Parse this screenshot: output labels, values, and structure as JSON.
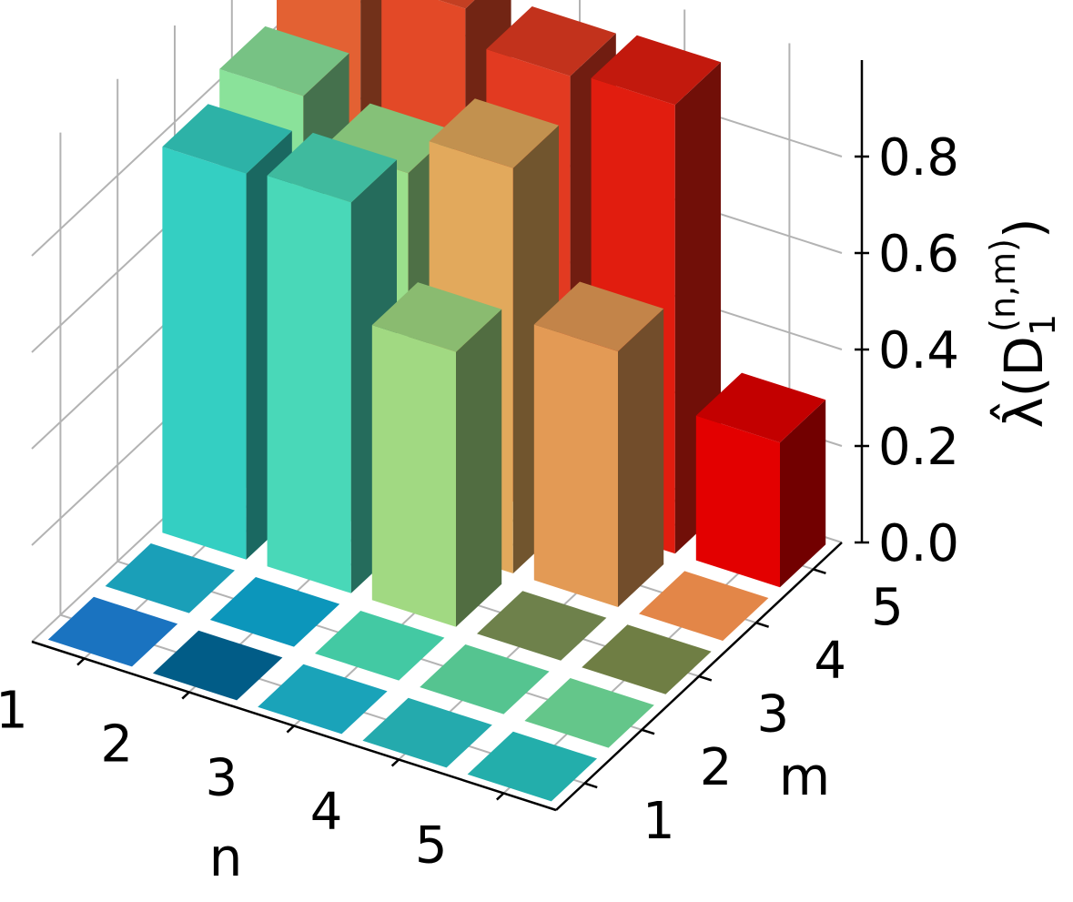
{
  "chart_data": {
    "type": "bar3d",
    "title": "",
    "xlabel": "n",
    "ylabel": "m",
    "zlabel": "λ̂(D₁⁽ⁿ,ᵐ⁾)",
    "zlabel_parts": {
      "base": "λ̂(D",
      "sub": "1",
      "sup": "(n,m)",
      "close": ")"
    },
    "x_ticks": [
      "1",
      "2",
      "3",
      "4",
      "5"
    ],
    "y_ticks": [
      "1",
      "2",
      "3",
      "4",
      "5"
    ],
    "z_ticks": [
      "0.0",
      "0.2",
      "0.4",
      "0.6",
      "0.8"
    ],
    "zlim": [
      0,
      1.0
    ],
    "grid": true,
    "n": [
      1,
      2,
      3,
      4,
      5
    ],
    "m": [
      1,
      2,
      3,
      4,
      5
    ],
    "values": [
      [
        0.0,
        0.0,
        0.8,
        0.85,
        1.0
      ],
      [
        0.0,
        0.0,
        0.81,
        0.76,
        0.99
      ],
      [
        0.0,
        0.0,
        0.57,
        0.84,
        0.92
      ],
      [
        0.0,
        0.0,
        0.0,
        0.53,
        0.93
      ],
      [
        0.0,
        0.0,
        0.0,
        0.0,
        0.3
      ]
    ],
    "colors": [
      [
        "#1a73c0",
        "#1a9fb8",
        "#34cfc2",
        "#8ae29a",
        "#e36133"
      ],
      [
        "#015c87",
        "#0c96bb",
        "#49d8b8",
        "#9be08c",
        "#e34927"
      ],
      [
        "#1aa3b9",
        "#43c9a3",
        "#a1d982",
        "#e2a95c",
        "#e23a21"
      ],
      [
        "#24aaad",
        "#55c490",
        "#6e814b",
        "#e39a55",
        "#e11d0f"
      ],
      [
        "#23aeab",
        "#64c68a",
        "#6f7e44",
        "#e38648",
        "#e30000"
      ]
    ]
  }
}
